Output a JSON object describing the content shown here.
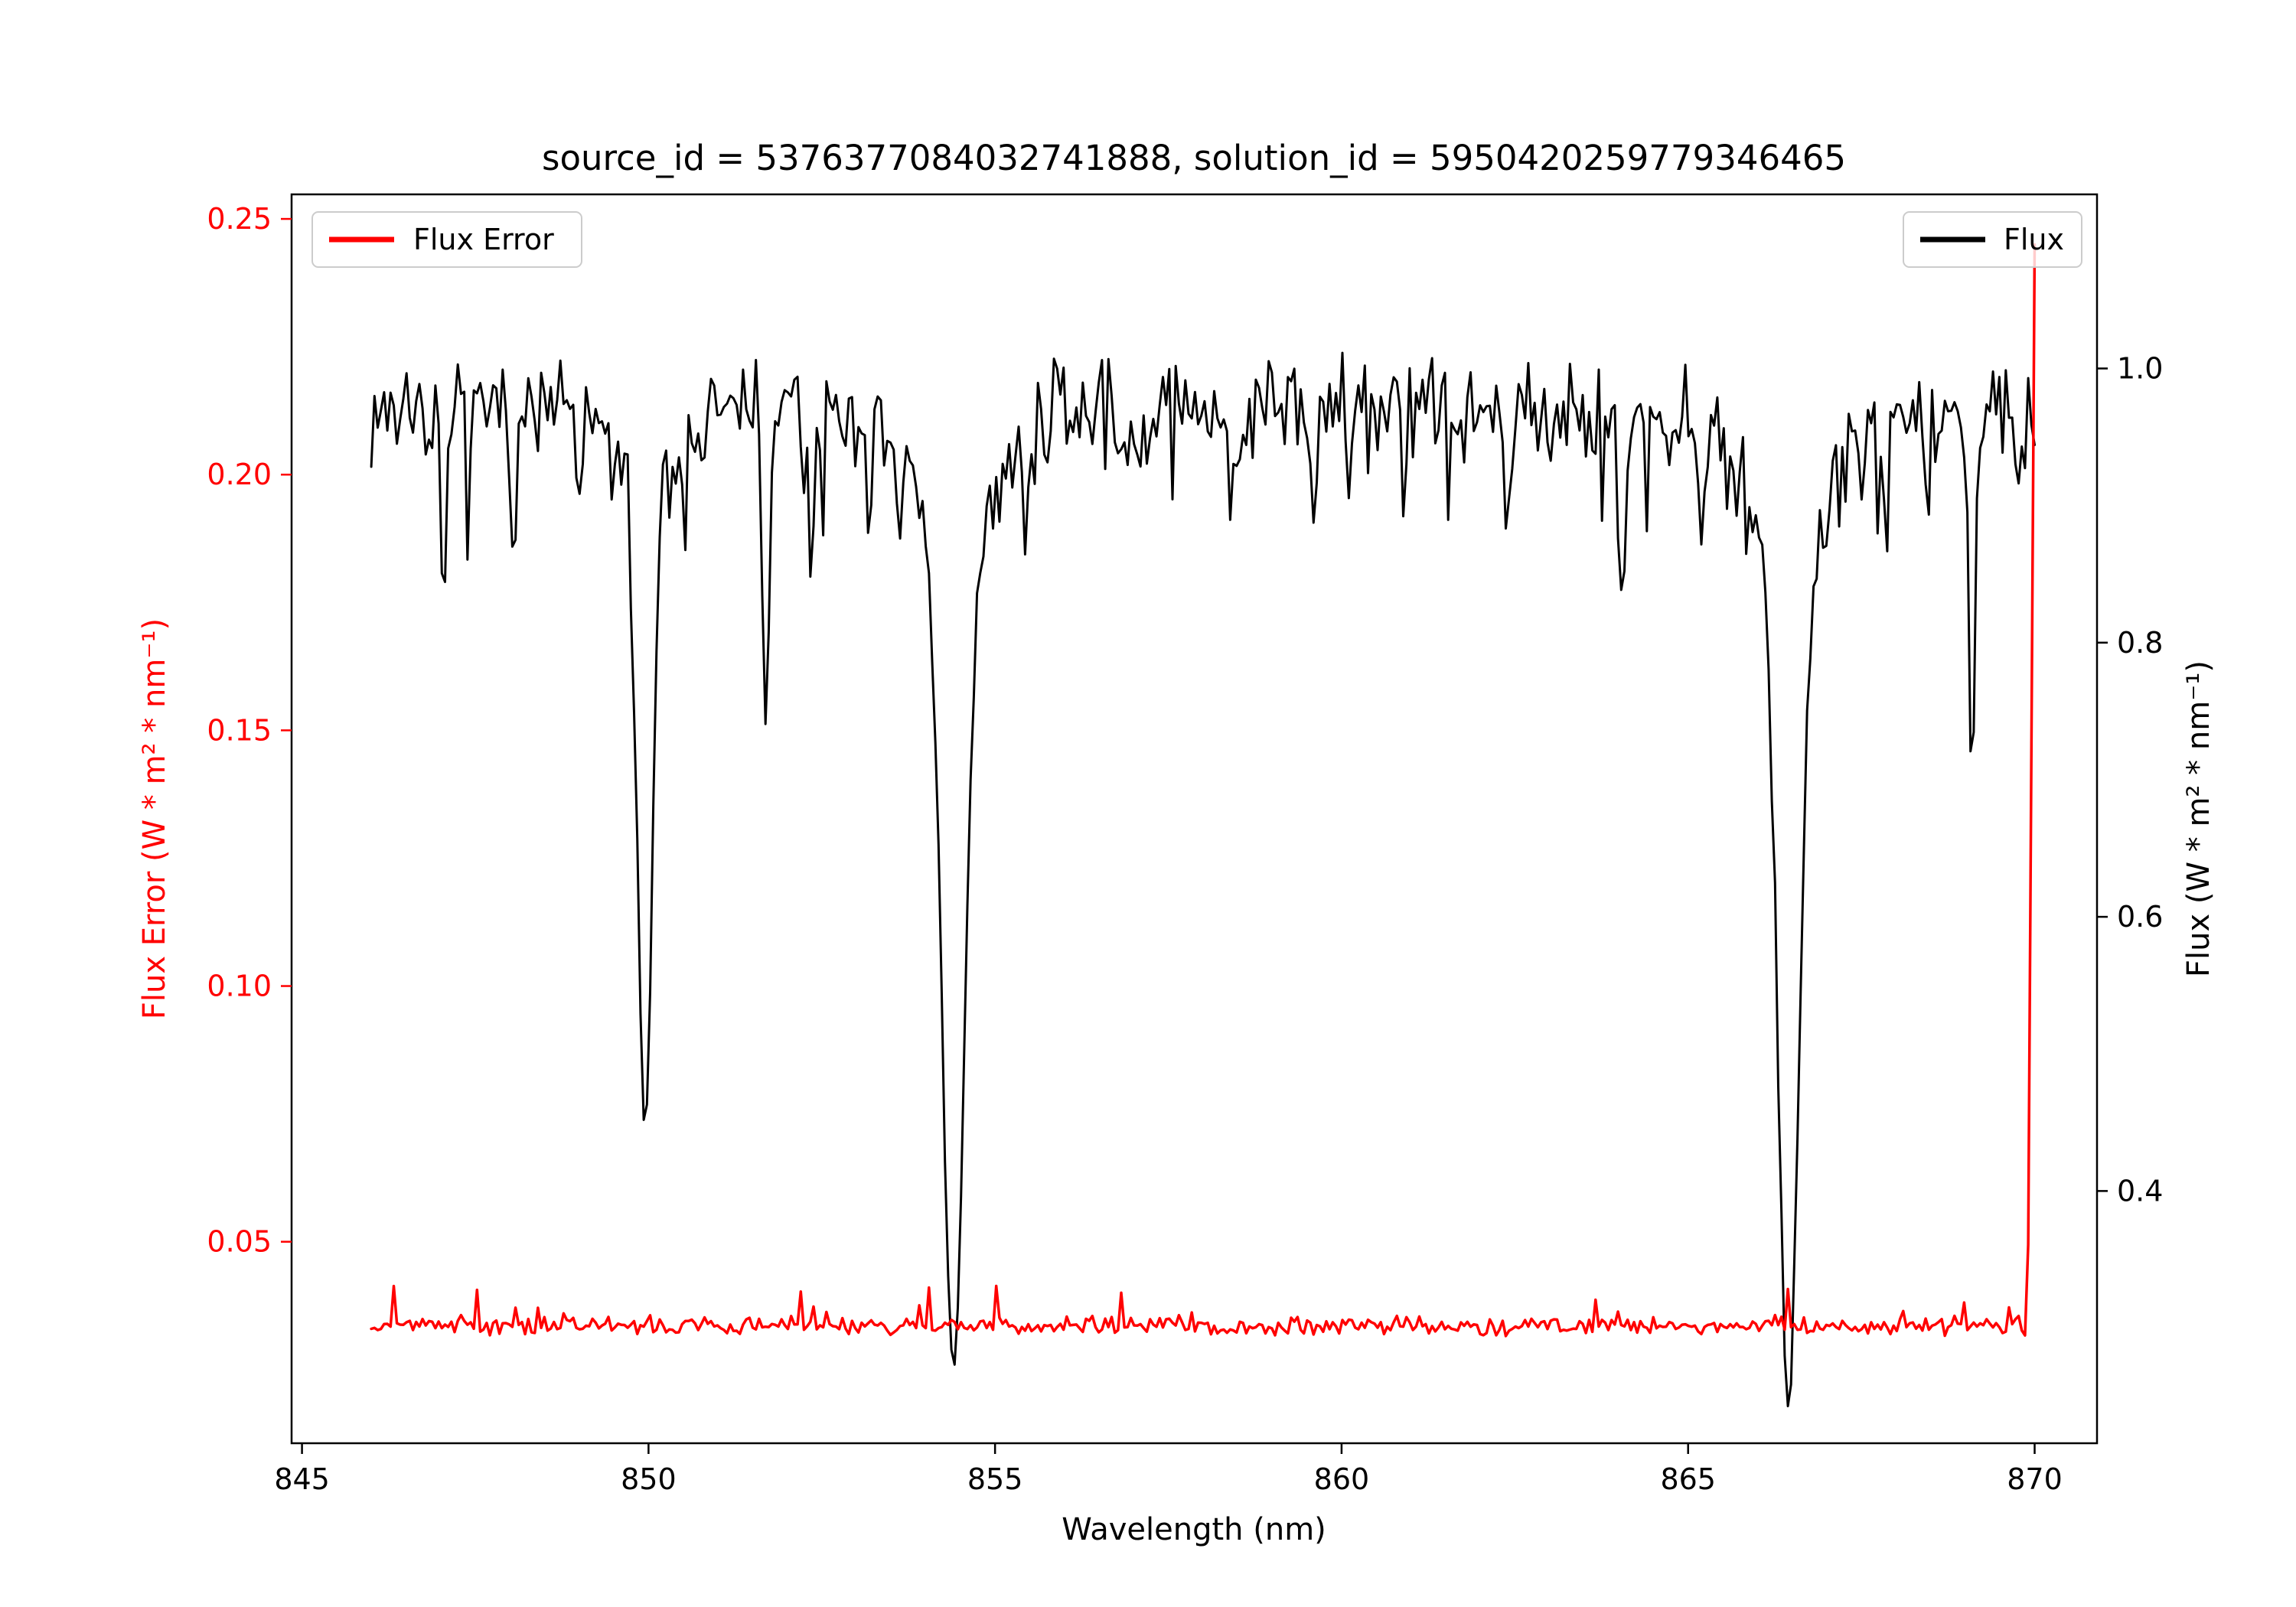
{
  "chart_data": {
    "type": "line",
    "title": "source_id = 5376377084032741888, solution_id = 5950420259779346465",
    "xlabel": "Wavelength (nm)",
    "xlim": [
      844.85,
      870.9
    ],
    "x_ticks": [
      845,
      850,
      855,
      860,
      865,
      870
    ],
    "x_tick_labels": [
      "845",
      "850",
      "855",
      "860",
      "865",
      "870"
    ],
    "grid": false,
    "background": "#ffffff",
    "left_axis": {
      "label": "Flux Error (W * m² * nm⁻¹)",
      "color": "#ff0000",
      "ticks": [
        0.05,
        0.1,
        0.15,
        0.2,
        0.25
      ],
      "tick_labels": [
        "0.05",
        "0.10",
        "0.15",
        "0.20",
        "0.25"
      ],
      "lim": [
        0.0106,
        0.2548
      ]
    },
    "right_axis": {
      "label": "Flux (W * m² * nm⁻¹)",
      "color": "#000000",
      "ticks": [
        0.4,
        0.6,
        0.8,
        1.0
      ],
      "tick_labels": [
        "0.4",
        "0.6",
        "0.8",
        "1.0"
      ],
      "lim": [
        0.216,
        1.127
      ]
    },
    "legend": [
      {
        "label": "Flux Error",
        "color": "#ff0000",
        "position": "upper-left"
      },
      {
        "label": "Flux",
        "color": "#000000",
        "position": "upper-right"
      }
    ],
    "series": [
      {
        "name": "Flux",
        "axis": "right",
        "color": "#000000",
        "line_width": 3,
        "x_start": 846.0,
        "x_end": 870.0,
        "n_points": 520,
        "continuum": 0.97,
        "noise_amp": 0.045,
        "dip_chance": 0.06,
        "dip_amp": 0.08,
        "seed": 7,
        "absorption_lines": [
          {
            "center": 849.95,
            "depth": 0.485,
            "sigma": 0.1
          },
          {
            "center": 849.95,
            "depth": 0.06,
            "sigma": 0.45
          },
          {
            "center": 854.4,
            "depth": 0.62,
            "sigma": 0.16
          },
          {
            "center": 854.4,
            "depth": 0.1,
            "sigma": 0.6
          },
          {
            "center": 866.45,
            "depth": 0.65,
            "sigma": 0.15
          },
          {
            "center": 866.45,
            "depth": 0.1,
            "sigma": 0.6
          },
          {
            "center": 847.05,
            "depth": 0.17,
            "sigma": 0.045
          },
          {
            "center": 848.05,
            "depth": 0.08,
            "sigma": 0.04
          },
          {
            "center": 849.0,
            "depth": 0.07,
            "sigma": 0.035
          },
          {
            "center": 851.7,
            "depth": 0.21,
            "sigma": 0.05
          },
          {
            "center": 852.35,
            "depth": 0.11,
            "sigma": 0.045
          },
          {
            "center": 853.2,
            "depth": 0.08,
            "sigma": 0.04
          },
          {
            "center": 855.45,
            "depth": 0.09,
            "sigma": 0.045
          },
          {
            "center": 856.9,
            "depth": 0.07,
            "sigma": 0.04
          },
          {
            "center": 858.4,
            "depth": 0.08,
            "sigma": 0.04
          },
          {
            "center": 859.6,
            "depth": 0.07,
            "sigma": 0.04
          },
          {
            "center": 860.9,
            "depth": 0.08,
            "sigma": 0.04
          },
          {
            "center": 862.4,
            "depth": 0.09,
            "sigma": 0.045
          },
          {
            "center": 864.05,
            "depth": 0.14,
            "sigma": 0.05
          },
          {
            "center": 865.2,
            "depth": 0.08,
            "sigma": 0.04
          },
          {
            "center": 867.85,
            "depth": 0.11,
            "sigma": 0.045
          },
          {
            "center": 868.45,
            "depth": 0.09,
            "sigma": 0.04
          },
          {
            "center": 869.1,
            "depth": 0.3,
            "sigma": 0.045
          }
        ]
      },
      {
        "name": "Flux Error",
        "axis": "left",
        "color": "#ff0000",
        "line_width": 3.5,
        "x_start": 846.0,
        "x_end": 870.0,
        "n_points": 520,
        "base_level": 0.0335,
        "noise_amp": 0.0022,
        "spike_chance": 0.06,
        "spike_amp": 0.008,
        "end_spike": {
          "x_start": 869.9,
          "value": 0.245
        },
        "seed": 3
      }
    ]
  }
}
